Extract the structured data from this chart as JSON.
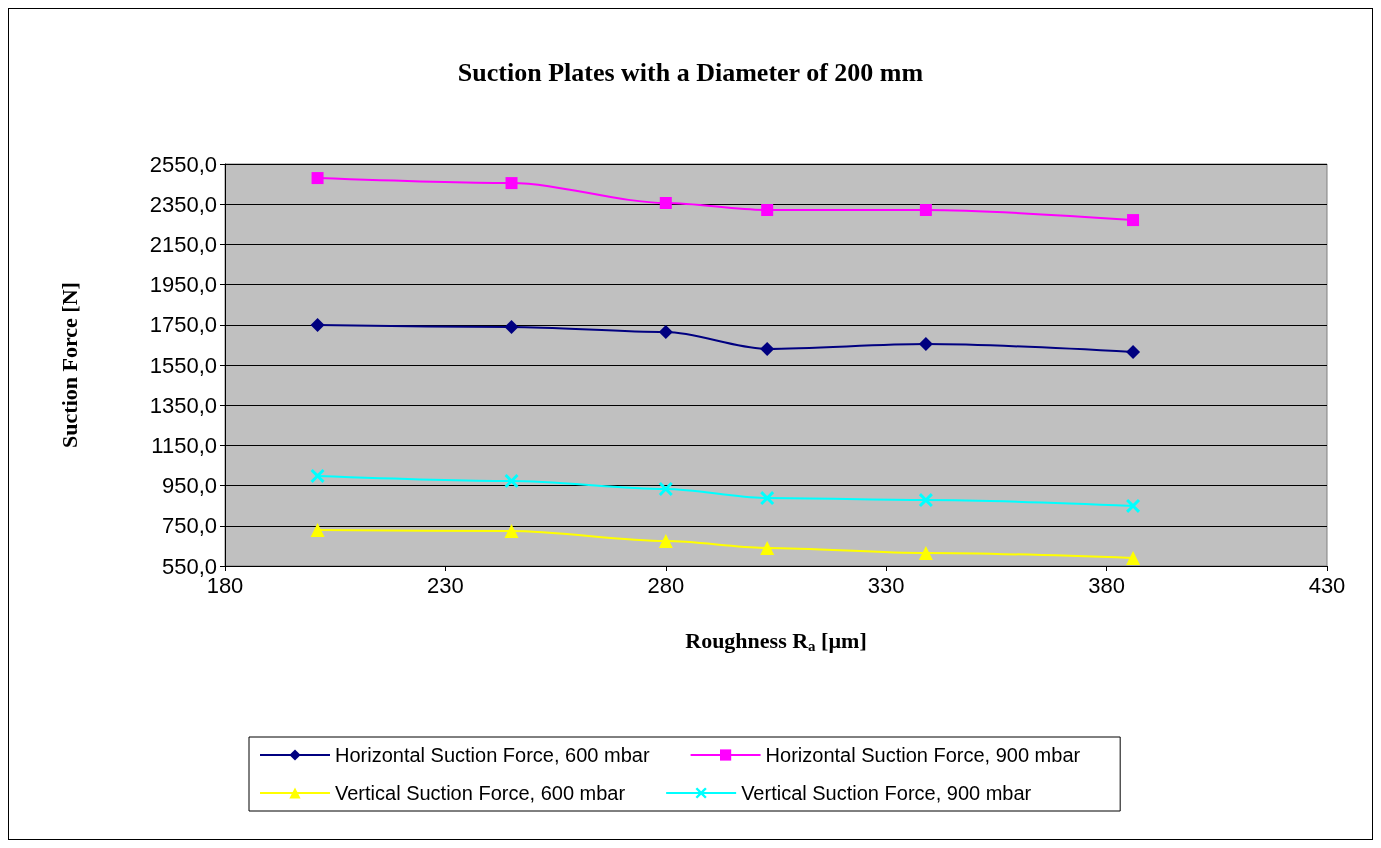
{
  "chart_data": {
    "type": "line",
    "title": "Suction Plates with a Diameter of 200 mm",
    "xlabel": "Roughness R$_{a}$ [µm]",
    "ylabel": "Suction Force [N]",
    "x": [
      201,
      245,
      280,
      303,
      339,
      386
    ],
    "xlim": [
      180,
      430
    ],
    "xticks": [
      180,
      230,
      280,
      330,
      380,
      430
    ],
    "ylim": [
      550,
      2550
    ],
    "yticks": [
      {
        "value": 550,
        "label": "550,0"
      },
      {
        "value": 750,
        "label": "750,0"
      },
      {
        "value": 950,
        "label": "950,0"
      },
      {
        "value": 1150,
        "label": "1150,0"
      },
      {
        "value": 1350,
        "label": "1350,0"
      },
      {
        "value": 1550,
        "label": "1550,0"
      },
      {
        "value": 1750,
        "label": "1750,0"
      },
      {
        "value": 1950,
        "label": "1950,0"
      },
      {
        "value": 2150,
        "label": "2150,0"
      },
      {
        "value": 2350,
        "label": "2350,0"
      },
      {
        "value": 2550,
        "label": "2550,0"
      }
    ],
    "grid": "y",
    "legend": "bottom",
    "series": [
      {
        "name": "Horizontal Suction Force, 600 mbar",
        "color": "#000080",
        "marker": "diamond",
        "values": [
          1749,
          1739,
          1714,
          1630,
          1654,
          1615
        ]
      },
      {
        "name": "Horizontal Suction Force, 900 mbar",
        "color": "#ff00ff",
        "marker": "square",
        "values": [
          2480,
          2455,
          2356,
          2321,
          2321,
          2271
        ]
      },
      {
        "name": "Vertical Suction Force, 600 mbar",
        "color": "#ffff00",
        "marker": "triangle",
        "values": [
          729,
          724,
          674,
          640,
          615,
          590
        ]
      },
      {
        "name": "Vertical Suction Force, 900 mbar",
        "color": "#00ffff",
        "marker": "cross",
        "values": [
          998,
          973,
          933,
          888,
          878,
          849
        ]
      }
    ]
  }
}
